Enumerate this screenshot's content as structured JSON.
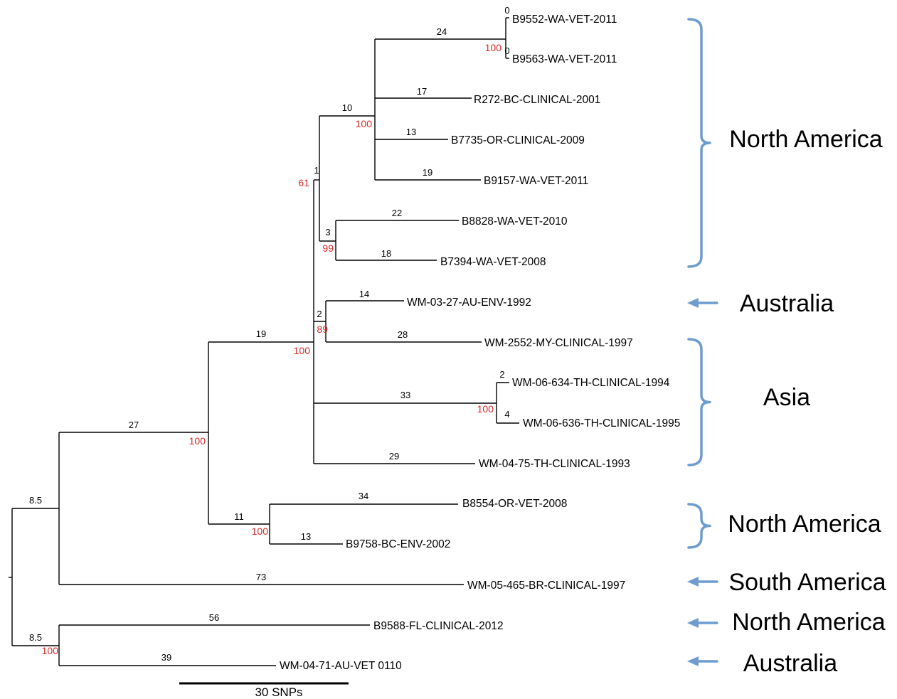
{
  "tree": {
    "leaves": [
      {
        "id": "l1",
        "label": "B9552-WA-VET-2011"
      },
      {
        "id": "l2",
        "label": "B9563-WA-VET-2011"
      },
      {
        "id": "l3",
        "label": "R272-BC-CLINICAL-2001"
      },
      {
        "id": "l4",
        "label": "B7735-OR-CLINICAL-2009"
      },
      {
        "id": "l5",
        "label": "B9157-WA-VET-2011"
      },
      {
        "id": "l6",
        "label": "B8828-WA-VET-2010"
      },
      {
        "id": "l7",
        "label": "B7394-WA-VET-2008"
      },
      {
        "id": "l8",
        "label": "WM-03-27-AU-ENV-1992"
      },
      {
        "id": "l9",
        "label": "WM-2552-MY-CLINICAL-1997"
      },
      {
        "id": "l10",
        "label": "WM-06-634-TH-CLINICAL-1994"
      },
      {
        "id": "l11",
        "label": "WM-06-636-TH-CLINICAL-1995"
      },
      {
        "id": "l12",
        "label": "WM-04-75-TH-CLINICAL-1993"
      },
      {
        "id": "l13",
        "label": "B8554-OR-VET-2008"
      },
      {
        "id": "l14",
        "label": "B9758-BC-ENV-2002"
      },
      {
        "id": "l15",
        "label": "WM-05-465-BR-CLINICAL-1997"
      },
      {
        "id": "l16",
        "label": "B9588-FL-CLINICAL-2012"
      },
      {
        "id": "l17",
        "label": "WM-04-71-AU-VET 0110"
      }
    ],
    "branch_lengths": [
      {
        "id": "b1",
        "text": "0"
      },
      {
        "id": "b2",
        "text": "0"
      },
      {
        "id": "b3",
        "text": "24"
      },
      {
        "id": "b4",
        "text": "17"
      },
      {
        "id": "b5",
        "text": "10"
      },
      {
        "id": "b6",
        "text": "13"
      },
      {
        "id": "b7",
        "text": "19"
      },
      {
        "id": "b8",
        "text": "1"
      },
      {
        "id": "b9",
        "text": "22"
      },
      {
        "id": "b10",
        "text": "3"
      },
      {
        "id": "b11",
        "text": "18"
      },
      {
        "id": "b12",
        "text": "14"
      },
      {
        "id": "b13",
        "text": "2"
      },
      {
        "id": "b14",
        "text": "28"
      },
      {
        "id": "b15",
        "text": "19"
      },
      {
        "id": "b16",
        "text": "2"
      },
      {
        "id": "b17",
        "text": "33"
      },
      {
        "id": "b18",
        "text": "4"
      },
      {
        "id": "b19",
        "text": "29"
      },
      {
        "id": "b20",
        "text": "27"
      },
      {
        "id": "b21",
        "text": "34"
      },
      {
        "id": "b22",
        "text": "11"
      },
      {
        "id": "b23",
        "text": "13"
      },
      {
        "id": "b24",
        "text": "8.5"
      },
      {
        "id": "b25",
        "text": "73"
      },
      {
        "id": "b26",
        "text": "56"
      },
      {
        "id": "b27",
        "text": "8.5"
      },
      {
        "id": "b28",
        "text": "39"
      }
    ],
    "bootstrap": [
      {
        "id": "s1",
        "text": "100"
      },
      {
        "id": "s2",
        "text": "100"
      },
      {
        "id": "s3",
        "text": "61"
      },
      {
        "id": "s4",
        "text": "99"
      },
      {
        "id": "s5",
        "text": "89"
      },
      {
        "id": "s6",
        "text": "100"
      },
      {
        "id": "s7",
        "text": "100"
      },
      {
        "id": "s8",
        "text": "100"
      },
      {
        "id": "s9",
        "text": "100"
      },
      {
        "id": "s10",
        "text": "100"
      }
    ]
  },
  "regions": [
    {
      "id": "r1",
      "label": "North America"
    },
    {
      "id": "r2",
      "label": "Australia"
    },
    {
      "id": "r3",
      "label": "Asia"
    },
    {
      "id": "r4",
      "label": "North America"
    },
    {
      "id": "r5",
      "label": "South America"
    },
    {
      "id": "r6",
      "label": "North America"
    },
    {
      "id": "r7",
      "label": "Australia"
    }
  ],
  "scale_bar": {
    "label": "30 SNPs"
  },
  "colors": {
    "bootstrap": "#d42a2a",
    "annotation": "#6e9ccf",
    "branch": "#000000"
  }
}
